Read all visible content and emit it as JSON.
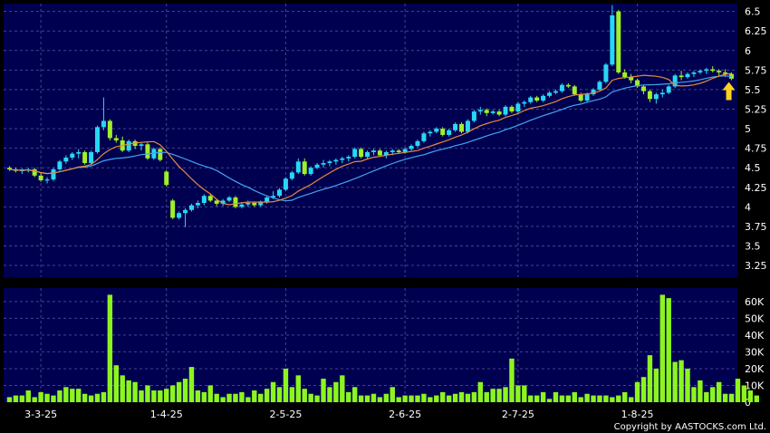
{
  "copyright": "Copyright by AASTOCKS.com Ltd.",
  "colors": {
    "background": "#000000",
    "panel": "#000050",
    "grid": "#44448a",
    "candle_up": "#28d7f5",
    "candle_down": "#9ff02a",
    "volume": "#8cf51e",
    "ma_short": "#e68a3c",
    "ma_long": "#41a5f0",
    "arrow": "#ffd21e",
    "text": "#ffffff"
  },
  "chart_data": [
    {
      "type": "candlestick",
      "title": "",
      "x_ticks": [
        "3-3-25",
        "1-4-25",
        "2-5-25",
        "2-6-25",
        "2-7-25",
        "1-8-25"
      ],
      "y_ticks": [
        "6.5",
        "6.25",
        "6",
        "5.75",
        "5.5",
        "5.25",
        "5",
        "4.75",
        "4.5",
        "4.25",
        "4",
        "3.75",
        "3.5",
        "3.25"
      ],
      "ylim": [
        3.1,
        6.6
      ],
      "grid": true,
      "series": [
        {
          "name": "",
          "type": "candlestick",
          "ohlc": [
            [
              4.5,
              4.52,
              4.46,
              4.48
            ],
            [
              4.48,
              4.5,
              4.44,
              4.46
            ],
            [
              4.46,
              4.49,
              4.42,
              4.47
            ],
            [
              4.47,
              4.5,
              4.44,
              4.48
            ],
            [
              4.48,
              4.5,
              4.38,
              4.4
            ],
            [
              4.4,
              4.44,
              4.32,
              4.34
            ],
            [
              4.34,
              4.38,
              4.3,
              4.35
            ],
            [
              4.35,
              4.5,
              4.33,
              4.48
            ],
            [
              4.48,
              4.6,
              4.46,
              4.58
            ],
            [
              4.58,
              4.66,
              4.55,
              4.63
            ],
            [
              4.63,
              4.7,
              4.6,
              4.68
            ],
            [
              4.68,
              4.74,
              4.62,
              4.7
            ],
            [
              4.7,
              4.72,
              4.54,
              4.56
            ],
            [
              4.56,
              4.72,
              4.54,
              4.7
            ],
            [
              4.7,
              5.04,
              4.68,
              5.02
            ],
            [
              5.02,
              5.4,
              4.98,
              5.1
            ],
            [
              5.1,
              5.12,
              4.85,
              4.88
            ],
            [
              4.88,
              4.92,
              4.82,
              4.85
            ],
            [
              4.85,
              4.9,
              4.7,
              4.72
            ],
            [
              4.72,
              4.86,
              4.7,
              4.84
            ],
            [
              4.84,
              4.86,
              4.74,
              4.78
            ],
            [
              4.78,
              4.82,
              4.72,
              4.8
            ],
            [
              4.8,
              4.82,
              4.6,
              4.62
            ],
            [
              4.62,
              4.76,
              4.6,
              4.74
            ],
            [
              4.74,
              4.76,
              4.58,
              4.6
            ],
            [
              4.45,
              4.47,
              4.26,
              4.28
            ],
            [
              4.08,
              4.1,
              3.84,
              3.86
            ],
            [
              3.86,
              3.94,
              3.84,
              3.92
            ],
            [
              3.92,
              3.98,
              3.74,
              3.96
            ],
            [
              3.96,
              4.04,
              3.94,
              4.02
            ],
            [
              4.02,
              4.08,
              3.98,
              4.05
            ],
            [
              4.05,
              4.16,
              4.02,
              4.14
            ],
            [
              4.14,
              4.16,
              4.06,
              4.08
            ],
            [
              4.08,
              4.1,
              4.01,
              4.04
            ],
            [
              4.04,
              4.1,
              4.01,
              4.08
            ],
            [
              4.08,
              4.14,
              4.06,
              4.12
            ],
            [
              4.12,
              4.14,
              3.98,
              4.0
            ],
            [
              4.0,
              4.06,
              3.98,
              4.03
            ],
            [
              4.03,
              4.08,
              4.0,
              4.05
            ],
            [
              4.05,
              4.07,
              4.0,
              4.02
            ],
            [
              4.02,
              4.08,
              4.0,
              4.06
            ],
            [
              4.06,
              4.14,
              4.04,
              4.12
            ],
            [
              4.12,
              4.2,
              4.1,
              4.14
            ],
            [
              4.14,
              4.24,
              4.12,
              4.22
            ],
            [
              4.22,
              4.38,
              4.2,
              4.36
            ],
            [
              4.36,
              4.46,
              4.34,
              4.44
            ],
            [
              4.44,
              4.62,
              4.42,
              4.58
            ],
            [
              4.58,
              4.62,
              4.4,
              4.42
            ],
            [
              4.42,
              4.52,
              4.4,
              4.5
            ],
            [
              4.5,
              4.56,
              4.48,
              4.54
            ],
            [
              4.54,
              4.6,
              4.5,
              4.56
            ],
            [
              4.56,
              4.6,
              4.52,
              4.58
            ],
            [
              4.58,
              4.62,
              4.54,
              4.6
            ],
            [
              4.6,
              4.64,
              4.56,
              4.62
            ],
            [
              4.62,
              4.66,
              4.58,
              4.64
            ],
            [
              4.64,
              4.76,
              4.62,
              4.74
            ],
            [
              4.74,
              4.76,
              4.62,
              4.64
            ],
            [
              4.64,
              4.72,
              4.62,
              4.7
            ],
            [
              4.7,
              4.74,
              4.66,
              4.72
            ],
            [
              4.72,
              4.74,
              4.64,
              4.66
            ],
            [
              4.66,
              4.72,
              4.62,
              4.7
            ],
            [
              4.7,
              4.74,
              4.66,
              4.72
            ],
            [
              4.72,
              4.74,
              4.68,
              4.7
            ],
            [
              4.7,
              4.76,
              4.68,
              4.74
            ],
            [
              4.74,
              4.8,
              4.72,
              4.78
            ],
            [
              4.78,
              4.86,
              4.76,
              4.84
            ],
            [
              4.84,
              4.96,
              4.82,
              4.94
            ],
            [
              4.94,
              4.98,
              4.9,
              4.96
            ],
            [
              4.96,
              5.02,
              4.94,
              5.0
            ],
            [
              5.0,
              5.02,
              4.9,
              4.92
            ],
            [
              4.92,
              5.0,
              4.9,
              4.98
            ],
            [
              4.98,
              5.08,
              4.96,
              5.06
            ],
            [
              5.06,
              5.08,
              4.94,
              4.96
            ],
            [
              4.96,
              5.12,
              4.94,
              5.1
            ],
            [
              5.1,
              5.24,
              5.08,
              5.22
            ],
            [
              5.22,
              5.28,
              5.18,
              5.24
            ],
            [
              5.24,
              5.26,
              5.16,
              5.2
            ],
            [
              5.2,
              5.24,
              5.18,
              5.22
            ],
            [
              5.22,
              5.24,
              5.16,
              5.18
            ],
            [
              5.18,
              5.3,
              5.16,
              5.28
            ],
            [
              5.28,
              5.3,
              5.2,
              5.22
            ],
            [
              5.22,
              5.34,
              5.2,
              5.32
            ],
            [
              5.32,
              5.36,
              5.28,
              5.34
            ],
            [
              5.34,
              5.42,
              5.32,
              5.4
            ],
            [
              5.4,
              5.42,
              5.34,
              5.36
            ],
            [
              5.36,
              5.44,
              5.34,
              5.42
            ],
            [
              5.42,
              5.48,
              5.4,
              5.46
            ],
            [
              5.46,
              5.5,
              5.44,
              5.48
            ],
            [
              5.48,
              5.58,
              5.46,
              5.56
            ],
            [
              5.56,
              5.58,
              5.52,
              5.54
            ],
            [
              5.54,
              5.56,
              5.42,
              5.44
            ],
            [
              5.44,
              5.46,
              5.34,
              5.36
            ],
            [
              5.36,
              5.46,
              5.34,
              5.44
            ],
            [
              5.44,
              5.52,
              5.42,
              5.5
            ],
            [
              5.5,
              5.62,
              5.48,
              5.6
            ],
            [
              5.6,
              5.84,
              5.58,
              5.82
            ],
            [
              5.82,
              6.58,
              5.8,
              6.45
            ],
            [
              6.5,
              6.52,
              5.7,
              5.72
            ],
            [
              5.72,
              5.76,
              5.64,
              5.66
            ],
            [
              5.66,
              5.7,
              5.58,
              5.62
            ],
            [
              5.62,
              5.64,
              5.52,
              5.54
            ],
            [
              5.54,
              5.56,
              5.44,
              5.48
            ],
            [
              5.48,
              5.5,
              5.34,
              5.38
            ],
            [
              5.38,
              5.46,
              5.32,
              5.44
            ],
            [
              5.44,
              5.5,
              5.4,
              5.46
            ],
            [
              5.46,
              5.56,
              5.44,
              5.54
            ],
            [
              5.54,
              5.7,
              5.52,
              5.68
            ],
            [
              5.68,
              5.74,
              5.62,
              5.66
            ],
            [
              5.66,
              5.72,
              5.64,
              5.7
            ],
            [
              5.7,
              5.74,
              5.66,
              5.72
            ],
            [
              5.72,
              5.76,
              5.7,
              5.74
            ],
            [
              5.74,
              5.78,
              5.7,
              5.76
            ],
            [
              5.76,
              5.8,
              5.72,
              5.74
            ],
            [
              5.74,
              5.76,
              5.68,
              5.72
            ],
            [
              5.72,
              5.76,
              5.66,
              5.7
            ],
            [
              5.7,
              5.72,
              5.62,
              5.64
            ]
          ]
        },
        {
          "name": "",
          "type": "line",
          "role": "ma_short"
        },
        {
          "name": "",
          "type": "line",
          "role": "ma_long"
        }
      ],
      "annotations": [
        {
          "type": "arrow",
          "direction": "up",
          "at_index": "last"
        }
      ]
    },
    {
      "type": "bar",
      "title": "",
      "y_ticks": [
        "60K",
        "50K",
        "40K",
        "30K",
        "20K",
        "10K",
        "0"
      ],
      "ylim": [
        0,
        68000
      ],
      "grid": true,
      "series": [
        {
          "name": "",
          "values": [
            3000,
            4000,
            4000,
            7000,
            3000,
            6000,
            5000,
            4000,
            7000,
            9000,
            8000,
            8000,
            5000,
            4000,
            5000,
            6000,
            64000,
            22000,
            16000,
            13000,
            12000,
            7000,
            10000,
            7000,
            7000,
            8000,
            10000,
            12000,
            14000,
            21000,
            7000,
            6000,
            10000,
            5000,
            3000,
            5000,
            5000,
            6000,
            3000,
            7000,
            5000,
            8000,
            12000,
            9000,
            20000,
            9000,
            16000,
            8000,
            5000,
            4000,
            14000,
            9000,
            12000,
            16000,
            6000,
            9000,
            4000,
            4000,
            5000,
            3000,
            5000,
            9000,
            3000,
            4000,
            4000,
            4000,
            5000,
            3000,
            4000,
            6000,
            4000,
            5000,
            6000,
            5000,
            6000,
            12000,
            6000,
            8000,
            8000,
            9000,
            26000,
            10000,
            10000,
            4000,
            4000,
            6000,
            2000,
            6000,
            4000,
            4000,
            6000,
            3000,
            5000,
            4000,
            4000,
            4000,
            3000,
            4000,
            6000,
            3000,
            12000,
            15000,
            28000,
            20000,
            64000,
            62000,
            24000,
            25000,
            20000,
            9000,
            13000,
            6000,
            9000,
            12000,
            5000,
            5000,
            14000,
            10000,
            7000,
            4000
          ]
        }
      ]
    }
  ]
}
